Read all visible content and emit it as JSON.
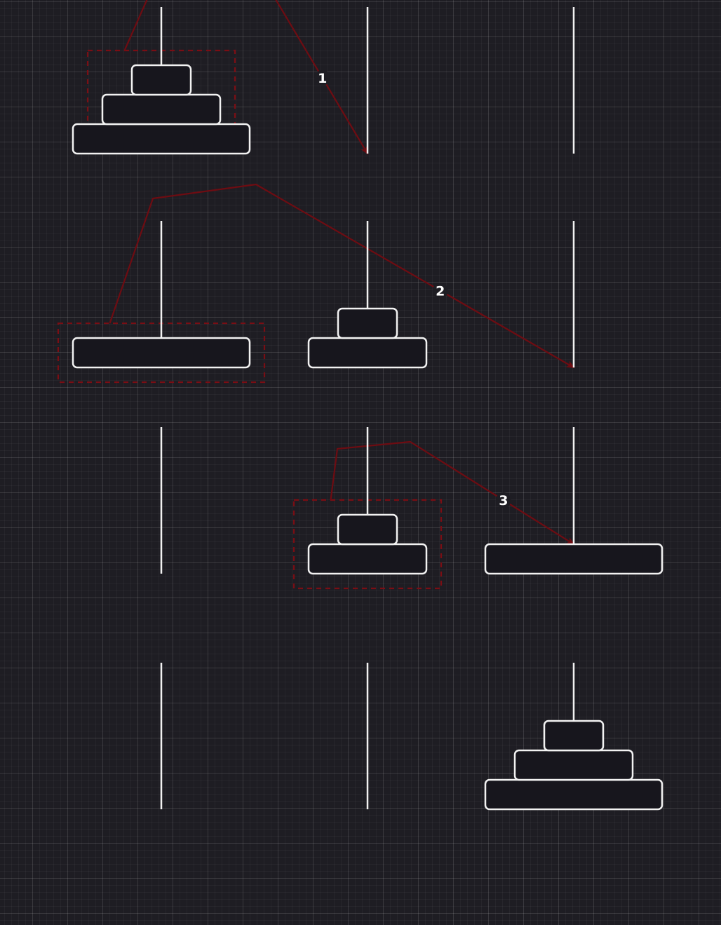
{
  "diagram": {
    "pegs_per_state": 3,
    "colors": {
      "background": "#1e1d23",
      "outline": "#f2f2f2",
      "disk_fill": "#17161d",
      "selection": "#7a0e14",
      "arrow": "#6e0c12"
    },
    "states": [
      {
        "pegs": [
          [
            3,
            2,
            1
          ],
          [],
          []
        ]
      },
      {
        "pegs": [
          [
            3
          ],
          [
            2,
            1
          ],
          []
        ]
      },
      {
        "pegs": [
          [],
          [
            2,
            1
          ],
          [
            3
          ]
        ]
      },
      {
        "pegs": [
          [],
          [],
          [
            3,
            2,
            1
          ]
        ]
      }
    ],
    "moves": [
      {
        "label": "1",
        "from_state": 0,
        "disks": [
          2,
          1
        ],
        "from_peg": 0,
        "to_peg": 1
      },
      {
        "label": "2",
        "from_state": 1,
        "disks": [
          3
        ],
        "from_peg": 0,
        "to_peg": 2
      },
      {
        "label": "3",
        "from_state": 2,
        "disks": [
          2,
          1
        ],
        "from_peg": 1,
        "to_peg": 2
      }
    ]
  }
}
